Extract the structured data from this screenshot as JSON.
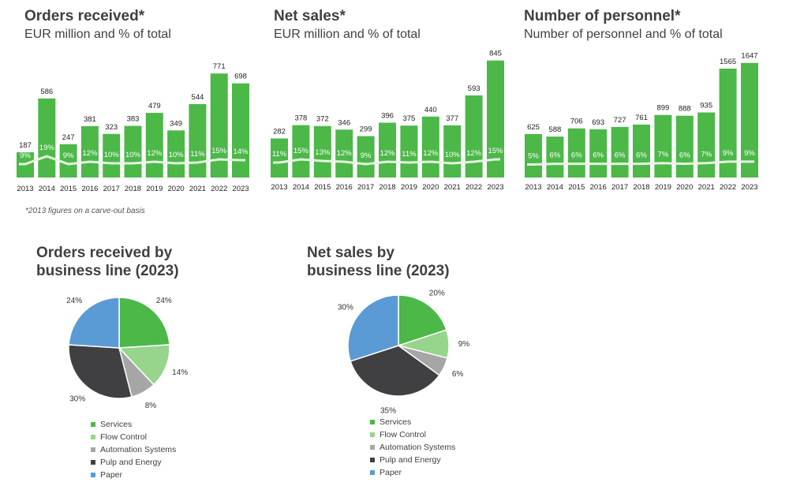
{
  "footnote": "*2013 figures on a carve-out basis",
  "chart_data": [
    {
      "type": "bar",
      "title": "Orders received*",
      "subtitle": "EUR million and % of total",
      "categories": [
        "2013",
        "2014",
        "2015",
        "2016",
        "2017",
        "2018",
        "2019",
        "2020",
        "2021",
        "2022",
        "2023"
      ],
      "values": [
        187,
        586,
        247,
        381,
        323,
        383,
        479,
        349,
        544,
        771,
        698
      ],
      "percent_labels": [
        "9%",
        "19%",
        "9%",
        "12%",
        "10%",
        "10%",
        "12%",
        "10%",
        "11%",
        "15%",
        "14%"
      ],
      "share_percent": [
        9,
        19,
        9,
        12,
        10,
        10,
        12,
        10,
        11,
        15,
        14
      ],
      "bar_color": "#4CB848",
      "line_color": "#E6F3E2"
    },
    {
      "type": "bar",
      "title": "Net sales*",
      "subtitle": "EUR million and % of total",
      "categories": [
        "2013",
        "2014",
        "2015",
        "2016",
        "2017",
        "2018",
        "2019",
        "2020",
        "2021",
        "2022",
        "2023"
      ],
      "values": [
        282,
        378,
        372,
        346,
        299,
        396,
        375,
        440,
        377,
        593,
        845
      ],
      "percent_labels": [
        "11%",
        "15%",
        "13%",
        "12%",
        "9%",
        "12%",
        "11%",
        "12%",
        "10%",
        "12%",
        "15%"
      ],
      "share_percent": [
        11,
        15,
        13,
        12,
        9,
        12,
        11,
        12,
        10,
        12,
        15
      ],
      "bar_color": "#4CB848",
      "line_color": "#E6F3E2"
    },
    {
      "type": "bar",
      "title": "Number of personnel*",
      "subtitle": "Number of personnel and % of total",
      "categories": [
        "2013",
        "2014",
        "2015",
        "2016",
        "2017",
        "2018",
        "2019",
        "2020",
        "2021",
        "2022",
        "2023"
      ],
      "values": [
        625,
        588,
        706,
        693,
        727,
        761,
        899,
        888,
        935,
        1565,
        1647
      ],
      "percent_labels": [
        "5%",
        "6%",
        "6%",
        "6%",
        "6%",
        "6%",
        "7%",
        "6%",
        "7%",
        "9%",
        "9%"
      ],
      "share_percent": [
        5,
        6,
        6,
        6,
        6,
        6,
        7,
        6,
        7,
        9,
        9
      ],
      "bar_color": "#4CB848",
      "line_color": "#E6F3E2"
    },
    {
      "type": "pie",
      "title_lines": [
        "Orders received by",
        "business line (2023)"
      ],
      "labels": [
        "Services",
        "Flow Control",
        "Automation Systems",
        "Pulp and Energy",
        "Paper"
      ],
      "values": [
        24,
        14,
        8,
        30,
        24
      ],
      "value_labels": [
        "24%",
        "14%",
        "8%",
        "30%",
        "24%"
      ],
      "colors": [
        "#4CB848",
        "#97D48C",
        "#A6A6A6",
        "#404042",
        "#5B9BD5"
      ]
    },
    {
      "type": "pie",
      "title_lines": [
        "Net sales by",
        "business line (2023)"
      ],
      "labels": [
        "Services",
        "Flow Control",
        "Automation Systems",
        "Pulp and Energy",
        "Paper"
      ],
      "values": [
        20,
        9,
        6,
        35,
        30
      ],
      "value_labels": [
        "20%",
        "9%",
        "6%",
        "35%",
        "30%"
      ],
      "colors": [
        "#4CB848",
        "#97D48C",
        "#A6A6A6",
        "#404042",
        "#5B9BD5"
      ]
    }
  ]
}
